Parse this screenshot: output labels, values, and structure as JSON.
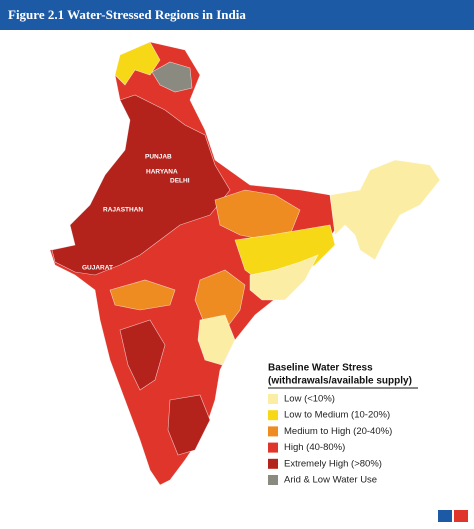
{
  "header": {
    "title": "Figure 2.1 Water-Stressed Regions in India"
  },
  "map": {
    "labels": [
      "PUNJAB",
      "HARYANA",
      "DELHI",
      "RAJASTHAN",
      "GUJARAT"
    ]
  },
  "legend": {
    "title": "Baseline Water Stress",
    "subtitle": "(withdrawals/available supply)",
    "items": [
      {
        "label": "Low (<10%)",
        "color": "#fbeea4"
      },
      {
        "label": "Low to Medium (10-20%)",
        "color": "#f7d817"
      },
      {
        "label": "Medium to High (20-40%)",
        "color": "#ee8b21"
      },
      {
        "label": "High (40-80%)",
        "color": "#e0352b"
      },
      {
        "label": "Extremely High (>80%)",
        "color": "#b3231c"
      },
      {
        "label": "Arid & Low Water Use",
        "color": "#8a8a80"
      }
    ]
  }
}
